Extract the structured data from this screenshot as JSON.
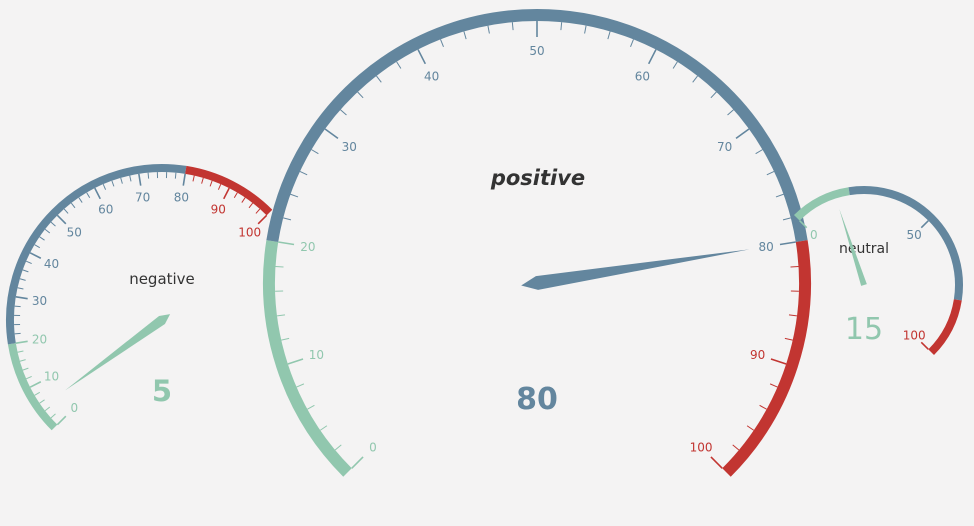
{
  "colors": {
    "background": "#f4f3f3",
    "green": "#91c7ae",
    "blue": "#63869e",
    "red": "#c23531",
    "title_text": "#333333"
  },
  "chart_data": [
    {
      "type": "gauge",
      "title": "positive",
      "title_style": "bold-italic",
      "min": 0,
      "max": 100,
      "value": 80,
      "value_label": "80",
      "ticks": [
        0,
        10,
        20,
        30,
        40,
        50,
        60,
        70,
        80,
        90,
        100
      ],
      "tick_labels": [
        "0",
        "10",
        "20",
        "30",
        "40",
        "50",
        "60",
        "70",
        "80",
        "90",
        "100"
      ],
      "bands": [
        {
          "to": 20,
          "color": "green"
        },
        {
          "to": 80,
          "color": "blue"
        },
        {
          "to": 100,
          "color": "red"
        }
      ]
    },
    {
      "type": "gauge",
      "title": "negative",
      "title_style": "normal",
      "min": 0,
      "max": 100,
      "value": 5,
      "value_label": "5",
      "ticks": [
        0,
        10,
        20,
        30,
        40,
        50,
        60,
        70,
        80,
        90,
        100
      ],
      "tick_labels": [
        "0",
        "10",
        "20",
        "30",
        "40",
        "50",
        "60",
        "70",
        "80",
        "90",
        "100"
      ],
      "bands": [
        {
          "to": 20,
          "color": "green"
        },
        {
          "to": 80,
          "color": "blue"
        },
        {
          "to": 100,
          "color": "red"
        }
      ]
    },
    {
      "type": "gauge",
      "title": "neutral",
      "title_style": "normal",
      "min": 0,
      "max": 100,
      "value": 15,
      "value_label": "15",
      "ticks": [
        0,
        50,
        100
      ],
      "tick_labels": [
        "0",
        "50",
        "100"
      ],
      "bands": [
        {
          "to": 20,
          "color": "green"
        },
        {
          "to": 80,
          "color": "blue"
        },
        {
          "to": 100,
          "color": "red"
        }
      ]
    }
  ]
}
